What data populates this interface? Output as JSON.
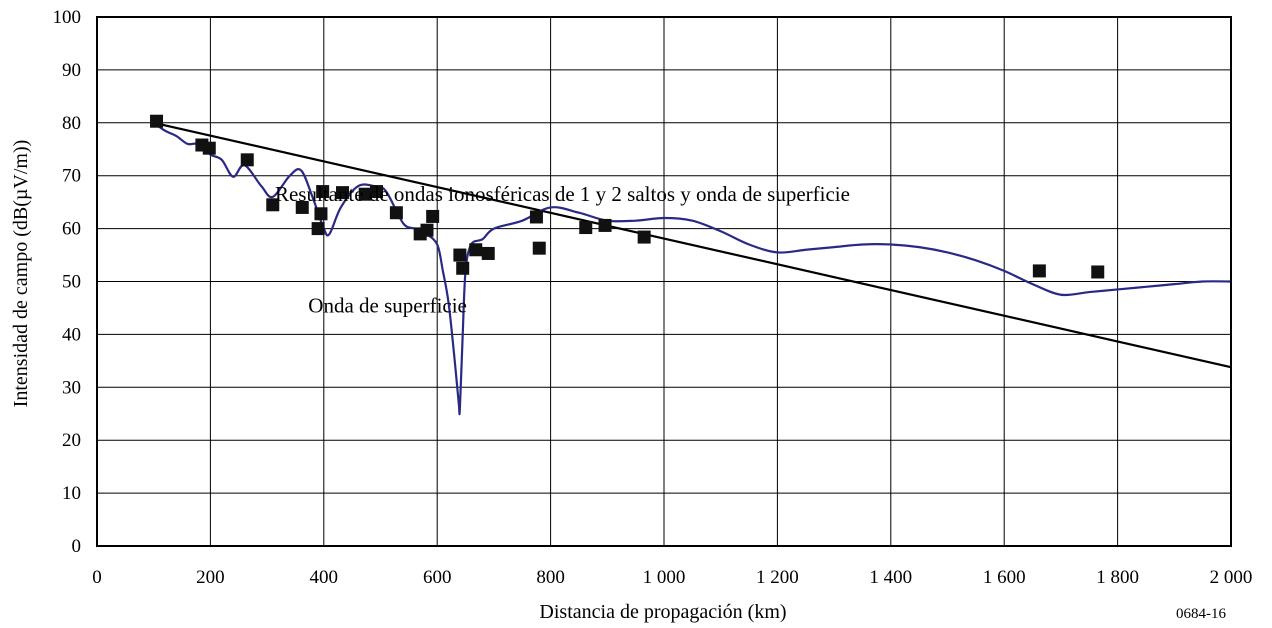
{
  "chart_data": {
    "type": "scatter",
    "xlabel": "Distancia de propagación (km)",
    "ylabel": "Intensidad de campo (dB(µV/m))",
    "xlim": [
      0,
      2000
    ],
    "ylim": [
      0,
      100
    ],
    "x_ticks": [
      0,
      200,
      400,
      600,
      800,
      1000,
      1200,
      1400,
      1600,
      1800,
      2000
    ],
    "x_tick_labels": [
      "0",
      "200",
      "400",
      "600",
      "800",
      "1 000",
      "1 200",
      "1 400",
      "1 600",
      "1 800",
      "2 000"
    ],
    "y_ticks": [
      0,
      10,
      20,
      30,
      40,
      50,
      60,
      70,
      80,
      90,
      100
    ],
    "y_tick_labels": [
      "0",
      "10",
      "20",
      "30",
      "40",
      "50",
      "60",
      "70",
      "80",
      "90",
      "100"
    ],
    "grid": true,
    "annotations": [
      {
        "text": "Resultante de ondas ionosféricas de 1 y 2 saltos y onda de superficie",
        "x": 820,
        "y": 66.5
      },
      {
        "text": "Onda de superficie",
        "x": 870,
        "y": 45.5
      }
    ],
    "figure_id": "0684-16",
    "series": [
      {
        "kind": "line",
        "color": "#000000",
        "x": [
          100,
          2000
        ],
        "y": [
          80,
          33.8
        ]
      },
      {
        "kind": "line",
        "color": "#2a2a86",
        "x": [
          100,
          120,
          140,
          160,
          180,
          200,
          220,
          240,
          260,
          290,
          310,
          340,
          360,
          380,
          400,
          410,
          430,
          460,
          490,
          510,
          540,
          560,
          580,
          600,
          610,
          620,
          630,
          638,
          640,
          645,
          650,
          660,
          680,
          700,
          750,
          800,
          850,
          900,
          950,
          1000,
          1050,
          1100,
          1150,
          1200,
          1250,
          1300,
          1350,
          1400,
          1450,
          1500,
          1550,
          1600,
          1650,
          1700,
          1750,
          1800,
          1850,
          1900,
          1950,
          2000
        ],
        "y": [
          80,
          78.5,
          77.5,
          76,
          76,
          74,
          73,
          69.8,
          72,
          68,
          66,
          70,
          71,
          66,
          60,
          59,
          64,
          68,
          68,
          67,
          61,
          60,
          59,
          57,
          52,
          46,
          36,
          27,
          26,
          40,
          52,
          57,
          58,
          60,
          61.5,
          64,
          63,
          61.5,
          61.5,
          62,
          61.5,
          59.5,
          57,
          55.5,
          56,
          56.5,
          57,
          57,
          56.5,
          55.5,
          54,
          52,
          49.5,
          47.5,
          48,
          48.5,
          49,
          49.5,
          50,
          50
        ]
      },
      {
        "kind": "points",
        "marker": "square",
        "color": "#111111",
        "x": [
          105,
          185,
          198,
          265,
          310,
          362,
          390,
          395,
          398,
          433,
          473,
          493,
          528,
          570,
          582,
          592,
          640,
          645,
          668,
          690,
          775,
          780,
          862,
          896,
          965,
          1662,
          1765
        ],
        "y": [
          80.3,
          75.8,
          75.2,
          73,
          64.5,
          64,
          60,
          62.8,
          67,
          66.8,
          66.5,
          67,
          63,
          59,
          59.7,
          62.3,
          55,
          52.5,
          56,
          55.3,
          62.2,
          56.3,
          60.2,
          60.6,
          58.4,
          52,
          51.8
        ]
      }
    ]
  }
}
